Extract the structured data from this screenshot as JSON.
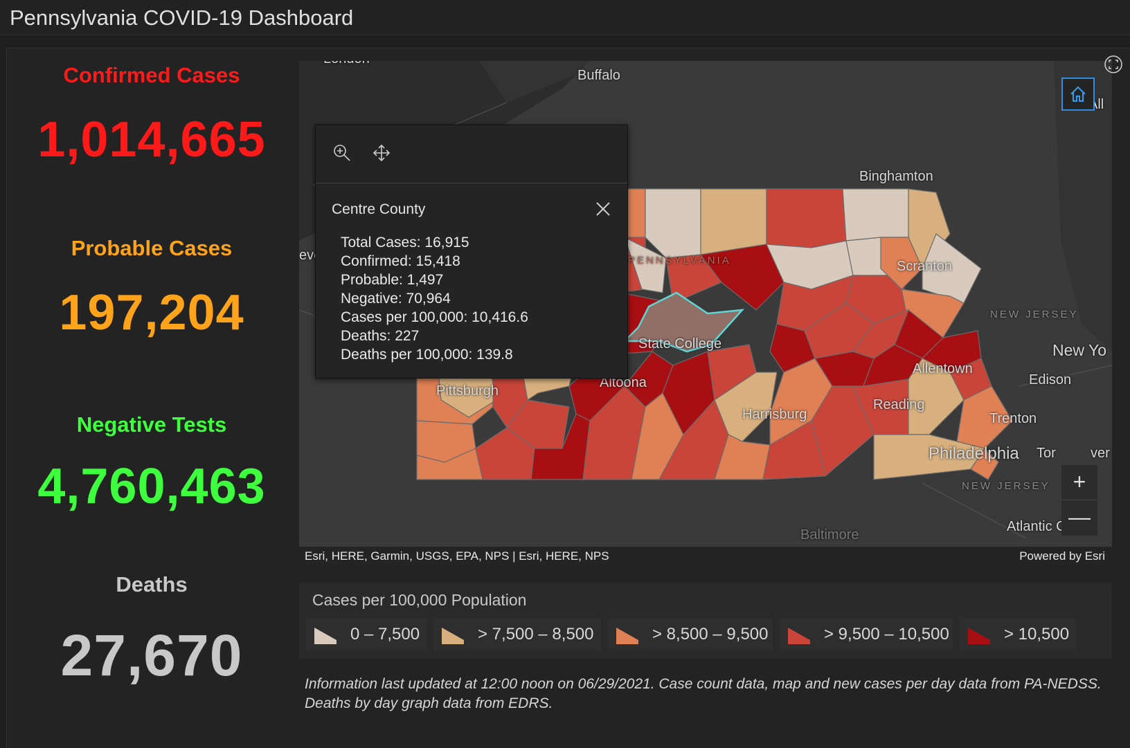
{
  "header": {
    "title": "Pennsylvania COVID-19 Dashboard"
  },
  "stats": {
    "confirmed": {
      "label": "Confirmed Cases",
      "value": "1,014,665",
      "color": "#ff1a1a"
    },
    "probable": {
      "label": "Probable Cases",
      "value": "197,204",
      "color": "#ffa31a"
    },
    "negative": {
      "label": "Negative Tests",
      "value": "4,760,463",
      "color": "#3dff3d"
    },
    "deaths": {
      "label": "Deaths",
      "value": "27,670",
      "color": "#c8c8c8"
    }
  },
  "map": {
    "cities": {
      "london": "London",
      "buffalo": "Buffalo",
      "binghamton": "Binghamton",
      "scranton": "Scranton",
      "state_college": "State College",
      "altoona": "Altoona",
      "pittsburgh": "Pittsburgh",
      "harrisburg": "Harrisburg",
      "reading": "Reading",
      "allentown": "Allentown",
      "philadelphia": "Philadelphia",
      "trenton": "Trenton",
      "edison": "Edison",
      "new_york": "New Yo",
      "toms_river_partial_left": "Tor",
      "toms_river_partial_right": "ver",
      "baltimore": "Baltimore",
      "atlantic_city": "Atlantic City",
      "albany_partial": "All",
      "cleveland_partial": "eve",
      "pennsylvania": "PENNSYLVANIA",
      "new_jersey_1": "NEW JERSEY",
      "new_jersey_2": "NEW JERSEY"
    },
    "attribution_left": "Esri, HERE, Garmin, USGS, EPA, NPS | Esri, HERE, NPS",
    "attribution_right": "Powered by Esri",
    "zoom_in": "+",
    "zoom_out": "—"
  },
  "popup": {
    "county": "Centre County",
    "lines": [
      "Total Cases: 16,915",
      "Confirmed: 15,418",
      "Probable: 1,497",
      "Negative: 70,964",
      "Cases per 100,000: 10,416.6",
      "Deaths: 227",
      "Deaths per 100,000: 139.8"
    ]
  },
  "legend": {
    "title": "Cases per 100,000 Population",
    "items": [
      {
        "label": "0 – 7,500",
        "color": "#d8cbbd"
      },
      {
        "label": "> 7,500 – 8,500",
        "color": "#d8b07e"
      },
      {
        "label": "> 8,500 – 9,500",
        "color": "#df8055"
      },
      {
        "label": "> 9,500 – 10,500",
        "color": "#c9453a"
      },
      {
        "label": "> 10,500",
        "color": "#a80f13"
      }
    ]
  },
  "note": "Information last updated at 12:00 noon on 06/29/2021. Case count data, map and new cases per day data from PA-NEDSS.  Deaths by day graph data from EDRS."
}
